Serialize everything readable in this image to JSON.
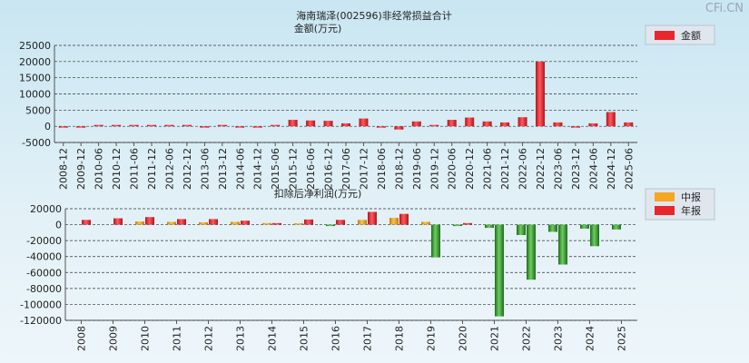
{
  "watermark": "CFi.CN",
  "chart_data": [
    {
      "type": "bar",
      "title": "海南瑞泽(002596)非经常损益合计",
      "subtitle": "金额(万元)",
      "ylim": [
        -5000,
        25000
      ],
      "yticks": [
        25000,
        20000,
        15000,
        10000,
        5000,
        0,
        -5000
      ],
      "grid": true,
      "legend_position": "top-right",
      "categories": [
        "2008-12",
        "2009-12",
        "2010-06",
        "2010-12",
        "2011-06",
        "2011-12",
        "2012-06",
        "2012-12",
        "2013-06",
        "2013-12",
        "2014-06",
        "2014-12",
        "2015-06",
        "2015-12",
        "2016-06",
        "2016-12",
        "2017-06",
        "2017-12",
        "2018-06",
        "2018-12",
        "2019-06",
        "2019-12",
        "2020-06",
        "2020-12",
        "2021-06",
        "2021-12",
        "2022-06",
        "2022-12",
        "2023-06",
        "2023-12",
        "2024-06",
        "2024-12",
        "2025-06"
      ],
      "series": [
        {
          "name": "金额",
          "color": "#e8262c",
          "values": [
            -300,
            -200,
            200,
            150,
            200,
            250,
            100,
            200,
            -100,
            150,
            -200,
            -150,
            300,
            2000,
            1800,
            1700,
            900,
            2400,
            -300,
            -1000,
            1500,
            300,
            2000,
            2700,
            1500,
            1200,
            2800,
            20000,
            1200,
            -100,
            900,
            4400,
            1200
          ]
        }
      ]
    },
    {
      "type": "bar",
      "title": "扣除后净利润(万元)",
      "ylim": [
        -120000,
        20000
      ],
      "yticks": [
        20000,
        0,
        -20000,
        -40000,
        -60000,
        -80000,
        -100000,
        -120000
      ],
      "grid": true,
      "legend_position": "top-right",
      "categories": [
        "2008",
        "2009",
        "2010",
        "2011",
        "2012",
        "2013",
        "2014",
        "2015",
        "2016",
        "2017",
        "2018",
        "2019",
        "2020",
        "2021",
        "2022",
        "2023",
        "2024",
        "2025"
      ],
      "series": [
        {
          "name": "中报",
          "color": "#f5a623",
          "values": [
            null,
            null,
            4000,
            3500,
            3000,
            3500,
            2000,
            500,
            -1500,
            6000,
            8500,
            3500,
            -1000,
            -4000,
            -13000,
            -9000,
            -5000,
            -6000
          ]
        },
        {
          "name": "年报",
          "color": "#e8262c",
          "values": [
            6000,
            8000,
            9500,
            7000,
            7000,
            5000,
            2000,
            6500,
            6000,
            16000,
            13500,
            -41000,
            2000,
            -115000,
            -69000,
            -50000,
            -27000,
            null
          ]
        }
      ]
    }
  ]
}
